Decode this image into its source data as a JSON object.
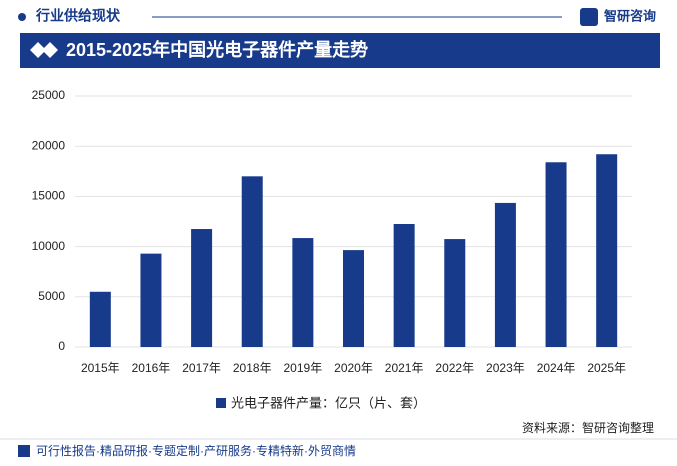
{
  "header": {
    "section": "行业供给现状",
    "logo": "智研咨询"
  },
  "chart_data": {
    "type": "bar",
    "title": "2015-2025年中国光电子器件产量走势",
    "categories": [
      "2015年",
      "2016年",
      "2017年",
      "2018年",
      "2019年",
      "2020年",
      "2021年",
      "2022年",
      "2023年",
      "2024年",
      "2025年"
    ],
    "series": [
      {
        "name": "光电子器件产量：亿只（片、套）",
        "color": "#173a8a",
        "values": [
          5500,
          9300,
          11750,
          17000,
          10850,
          9650,
          12250,
          10750,
          14350,
          18400,
          19200
        ]
      }
    ],
    "ylim": [
      0,
      25000
    ],
    "yticks": [
      0,
      5000,
      10000,
      15000,
      20000,
      25000
    ],
    "grid": true,
    "source": "资料来源：智研咨询整理"
  },
  "footer": "可行性报告·精品研报·专题定制·产研服务·专精特新·外贸商情"
}
